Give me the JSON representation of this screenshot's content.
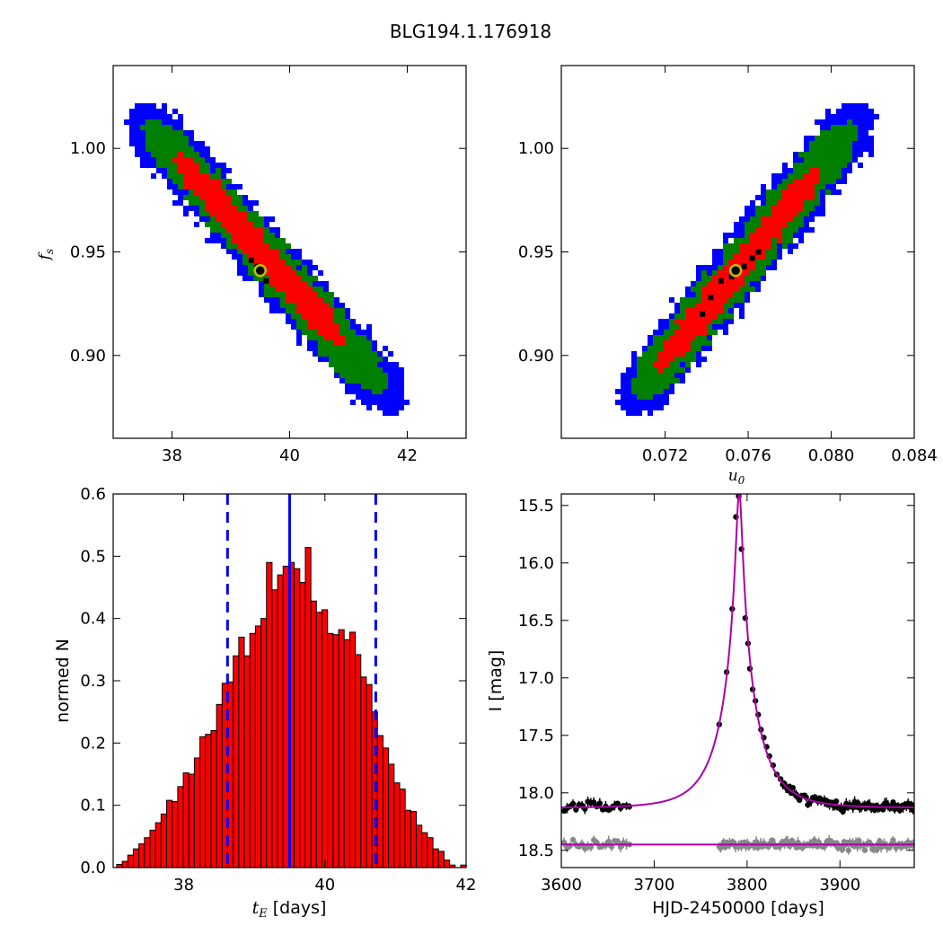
{
  "figure": {
    "title": "BLG194.1.176918"
  },
  "chart_data": [
    {
      "id": "tl",
      "type": "heatmap",
      "xlabel": "",
      "ylabel": "f_s",
      "xlim": [
        37.0,
        43.0
      ],
      "ylim": [
        0.86,
        1.04
      ],
      "xticks": [
        {
          "v": 38,
          "t": "38"
        },
        {
          "v": 40,
          "t": "40"
        },
        {
          "v": 42,
          "t": "42"
        }
      ],
      "yticks": [
        {
          "v": 0.9,
          "t": "0.90"
        },
        {
          "v": 0.95,
          "t": "0.95"
        },
        {
          "v": 1.0,
          "t": "1.00"
        }
      ],
      "line": {
        "x1": 37.35,
        "y1": 1.02,
        "x2": 41.9,
        "y2": 0.873
      },
      "bands": [
        {
          "level": "3-sigma",
          "color": "#0000ff",
          "halfwidth": 0.0135,
          "tmin": 0.0,
          "tmax": 1.0
        },
        {
          "level": "2-sigma",
          "color": "#007f00",
          "halfwidth": 0.01,
          "tmin": 0.05,
          "tmax": 0.93
        },
        {
          "level": "1-sigma",
          "color": "#ff0000",
          "halfwidth": 0.006,
          "tmin": 0.16,
          "tmax": 0.78
        }
      ],
      "best_fit": {
        "x": 39.5,
        "y": 0.941
      },
      "black_points": [
        [
          39.45,
          0.943
        ],
        [
          39.55,
          0.94
        ],
        [
          39.35,
          0.946
        ],
        [
          39.6,
          0.936
        ]
      ],
      "colors": {
        "marker_face": "#000000",
        "marker_edge": "#bfbf00"
      }
    },
    {
      "id": "tr",
      "type": "heatmap",
      "xlabel": "u_0",
      "ylabel": "",
      "xlim": [
        0.067,
        0.084
      ],
      "ylim": [
        0.86,
        1.04
      ],
      "xticks": [
        {
          "v": 0.072,
          "t": "0.072"
        },
        {
          "v": 0.076,
          "t": "0.076"
        },
        {
          "v": 0.08,
          "t": "0.080"
        },
        {
          "v": 0.084,
          "t": "0.084"
        }
      ],
      "yticks": [
        {
          "v": 0.9,
          "t": "0.90"
        },
        {
          "v": 0.95,
          "t": "0.95"
        },
        {
          "v": 1.0,
          "t": "1.00"
        }
      ],
      "line": {
        "x1": 0.07,
        "y1": 0.873,
        "x2": 0.0818,
        "y2": 1.02
      },
      "bands": [
        {
          "level": "3-sigma",
          "color": "#0000ff",
          "halfwidth": 0.0135,
          "tmin": 0.0,
          "tmax": 1.0
        },
        {
          "level": "2-sigma",
          "color": "#007f00",
          "halfwidth": 0.01,
          "tmin": 0.05,
          "tmax": 0.94
        },
        {
          "level": "1-sigma",
          "color": "#ff0000",
          "halfwidth": 0.006,
          "tmin": 0.14,
          "tmax": 0.8
        }
      ],
      "best_fit": {
        "x": 0.0754,
        "y": 0.941
      },
      "black_points": [
        [
          0.0752,
          0.938
        ],
        [
          0.0758,
          0.943
        ],
        [
          0.0762,
          0.947
        ],
        [
          0.0747,
          0.936
        ],
        [
          0.0765,
          0.95
        ],
        [
          0.0742,
          0.928
        ],
        [
          0.0738,
          0.92
        ]
      ],
      "colors": {
        "marker_face": "#000000",
        "marker_edge": "#bfbf00"
      }
    },
    {
      "id": "bl",
      "type": "bar",
      "xlabel": "t_E [days]",
      "ylabel": "normed N",
      "xlim": [
        37.0,
        42.0
      ],
      "ylim": [
        0.0,
        0.6
      ],
      "xticks": [
        {
          "v": 38,
          "t": "38"
        },
        {
          "v": 40,
          "t": "40"
        },
        {
          "v": 42,
          "t": "42"
        }
      ],
      "yticks": [
        {
          "v": 0.0,
          "t": "0.0"
        },
        {
          "v": 0.1,
          "t": "0.1"
        },
        {
          "v": 0.2,
          "t": "0.2"
        },
        {
          "v": 0.3,
          "t": "0.3"
        },
        {
          "v": 0.4,
          "t": "0.4"
        },
        {
          "v": 0.5,
          "t": "0.5"
        },
        {
          "v": 0.6,
          "t": "0.6"
        }
      ],
      "bin_start": 37.05,
      "bin_width": 0.0786,
      "values": [
        0.005,
        0.01,
        0.02,
        0.03,
        0.038,
        0.048,
        0.06,
        0.072,
        0.086,
        0.108,
        0.106,
        0.13,
        0.152,
        0.15,
        0.176,
        0.21,
        0.214,
        0.22,
        0.262,
        0.296,
        0.298,
        0.34,
        0.37,
        0.34,
        0.376,
        0.388,
        0.4,
        0.49,
        0.446,
        0.47,
        0.484,
        0.49,
        0.48,
        0.458,
        0.514,
        0.428,
        0.41,
        0.414,
        0.376,
        0.374,
        0.382,
        0.366,
        0.378,
        0.342,
        0.306,
        0.294,
        0.25,
        0.212,
        0.192,
        0.166,
        0.136,
        0.126,
        0.092,
        0.09,
        0.068,
        0.056,
        0.048,
        0.03,
        0.026,
        0.012,
        0.004,
        0.0,
        0.004
      ],
      "vlines": [
        {
          "x": 38.62,
          "style": "dashed",
          "color": "#0000ff"
        },
        {
          "x": 39.5,
          "style": "solid",
          "color": "#0000ff"
        },
        {
          "x": 40.72,
          "style": "dashed",
          "color": "#0000ff"
        }
      ],
      "colors": {
        "bar": "#ff0000",
        "edge": "#000000"
      }
    },
    {
      "id": "br",
      "type": "line",
      "xlabel": "HJD-2450000 [days]",
      "ylabel": "I [mag]",
      "xlim": [
        3600,
        3980
      ],
      "ylim": [
        18.65,
        15.4
      ],
      "y_inverted": true,
      "xticks": [
        {
          "v": 3600,
          "t": "3600"
        },
        {
          "v": 3700,
          "t": "3700"
        },
        {
          "v": 3800,
          "t": "3800"
        },
        {
          "v": 3900,
          "t": "3900"
        }
      ],
      "yticks": [
        {
          "v": 15.5,
          "t": "15.5"
        },
        {
          "v": 16.0,
          "t": "16.0"
        },
        {
          "v": 16.5,
          "t": "16.5"
        },
        {
          "v": 17.0,
          "t": "17.0"
        },
        {
          "v": 17.5,
          "t": "17.5"
        },
        {
          "v": 18.0,
          "t": "18.0"
        },
        {
          "v": 18.5,
          "t": "18.5"
        }
      ],
      "model": {
        "t0": 3791.5,
        "tE": 39.5,
        "u0": 0.0754,
        "fs": 0.941,
        "base_mag": 18.13,
        "color": "#aa00aa"
      },
      "baseline_line": {
        "y": 18.45,
        "color": "#aa00aa"
      },
      "peak_points": [
        [
          3778,
          16.95
        ],
        [
          3784,
          16.4
        ],
        [
          3788,
          15.6
        ],
        [
          3791,
          15.42
        ],
        [
          3794,
          15.88
        ],
        [
          3798,
          16.48
        ],
        [
          3801,
          16.7
        ],
        [
          3803,
          16.92
        ],
        [
          3806,
          17.1
        ],
        [
          3809,
          17.2
        ],
        [
          3812,
          17.32
        ],
        [
          3815,
          17.45
        ],
        [
          3818,
          17.52
        ],
        [
          3821,
          17.6
        ],
        [
          3824,
          17.68
        ],
        [
          3828,
          17.76
        ],
        [
          3832,
          17.84
        ],
        [
          3836,
          17.88
        ]
      ],
      "baseline_mag": 18.13,
      "gray_mag": 18.45,
      "obs_ranges": [
        [
          3603,
          3675
        ],
        [
          3770,
          3980
        ]
      ],
      "colors": {
        "points": "#000000",
        "gray": "#888888"
      }
    }
  ]
}
